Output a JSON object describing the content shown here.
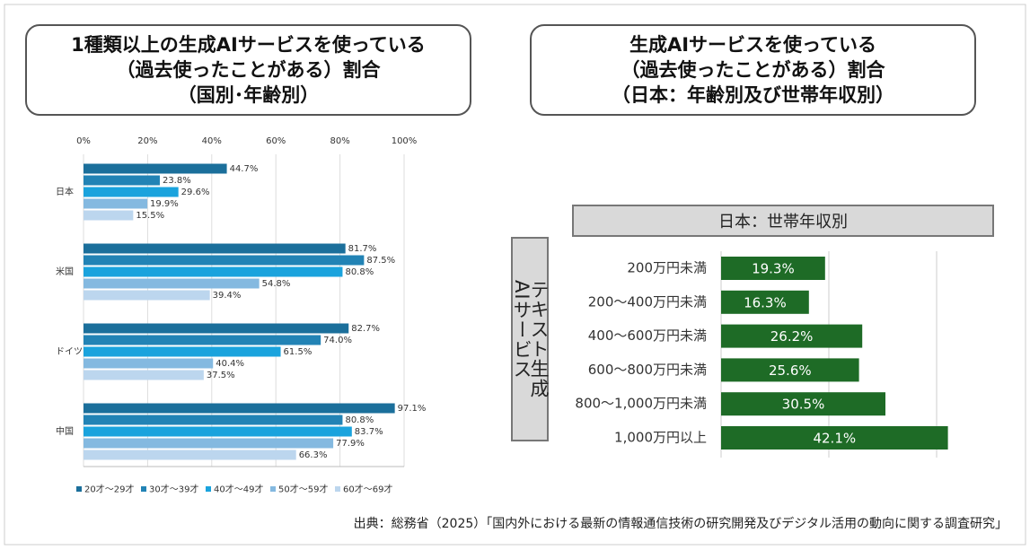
{
  "chart_data": [
    {
      "type": "bar",
      "orientation": "horizontal",
      "title": "1種類以上の生成AIサービスを使っている\n（過去使ったことがある）割合\n（国別･年齢別）",
      "categories": [
        "日本",
        "米国",
        "ドイツ",
        "中国"
      ],
      "series": [
        {
          "name": "20才～29才",
          "color": "#1b6f9b",
          "values": [
            44.7,
            81.7,
            82.7,
            97.1
          ],
          "value_labels": [
            "44.7%",
            "81.7%",
            "82.7%",
            "97.1%"
          ]
        },
        {
          "name": "30才～39才",
          "color": "#2283b5",
          "values": [
            23.8,
            87.5,
            74.0,
            80.8
          ],
          "value_labels": [
            "23.8%",
            "87.5%",
            "74.0%",
            "80.8%"
          ]
        },
        {
          "name": "40才～49才",
          "color": "#1aa3dd",
          "values": [
            29.6,
            80.8,
            61.5,
            83.7
          ],
          "value_labels": [
            "29.6%",
            "80.8%",
            "61.5%",
            "83.7%"
          ]
        },
        {
          "name": "50才～59才",
          "color": "#84b9e0",
          "values": [
            19.9,
            54.8,
            40.4,
            77.9
          ],
          "value_labels": [
            "19.9%",
            "54.8%",
            "40.4%",
            "77.9%"
          ]
        },
        {
          "name": "60才～69才",
          "color": "#bcd6ee",
          "values": [
            15.5,
            39.4,
            37.5,
            66.3
          ],
          "value_labels": [
            "15.5%",
            "39.4%",
            "37.5%",
            "66.3%"
          ]
        }
      ],
      "xlim": [
        0,
        100
      ],
      "xticks": [
        {
          "value": 0,
          "label": "0%"
        },
        {
          "value": 20,
          "label": "20%"
        },
        {
          "value": 40,
          "label": "40%"
        },
        {
          "value": 60,
          "label": "60%"
        },
        {
          "value": 80,
          "label": "80%"
        },
        {
          "value": 100,
          "label": "100%"
        }
      ],
      "grid": true,
      "legend": "bottom"
    },
    {
      "type": "bar",
      "orientation": "horizontal",
      "title": "生成AIサービスを使っている\n（過去使ったことがある）割合\n（日本：年齢別及び世帯年収別）",
      "subtitle": "日本：世帯年収別",
      "y_label": "テキスト生成AIサービス",
      "categories": [
        "200万円未満",
        "200～400万円未満",
        "400～600万円未満",
        "600～800万円未満",
        "800～1,000万円未満",
        "1,000万円以上"
      ],
      "values": [
        19.3,
        16.3,
        26.2,
        25.6,
        30.5,
        42.1
      ],
      "value_labels": [
        "19.3%",
        "16.3%",
        "26.2%",
        "25.6%",
        "30.5%",
        "42.1%"
      ],
      "color": "#1e6b26",
      "xlim": [
        0,
        40
      ],
      "xticks": [
        0,
        20,
        40
      ],
      "tick_labels": false,
      "grid": true
    }
  ],
  "source": "出典：総務省（2025）「国内外における最新の情報通信技術の研究開発及びデジタル活用の動向に関する調査研究」"
}
